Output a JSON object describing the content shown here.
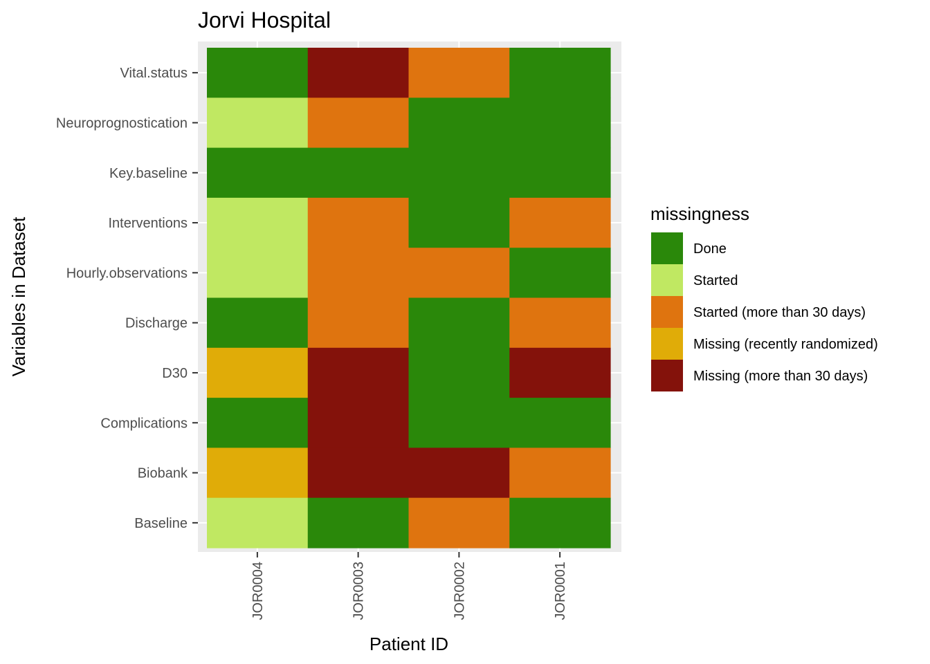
{
  "chart_data": {
    "type": "heatmap",
    "title": "Jorvi Hospital",
    "xlabel": "Patient ID",
    "ylabel": "Variables in Dataset",
    "x_categories": [
      "JOR0004",
      "JOR0003",
      "JOR0002",
      "JOR0001"
    ],
    "y_categories": [
      "Vital.status",
      "Neuroprognostication",
      "Key.baseline",
      "Interventions",
      "Hourly.observations",
      "Discharge",
      "D30",
      "Complications",
      "Biobank",
      "Baseline"
    ],
    "values": [
      [
        "Done",
        "Missing (more than 30 days)",
        "Started (more than 30 days)",
        "Done"
      ],
      [
        "Started",
        "Started (more than 30 days)",
        "Done",
        "Done"
      ],
      [
        "Done",
        "Done",
        "Done",
        "Done"
      ],
      [
        "Started",
        "Started (more than 30 days)",
        "Done",
        "Started (more than 30 days)"
      ],
      [
        "Started",
        "Started (more than 30 days)",
        "Started (more than 30 days)",
        "Done"
      ],
      [
        "Done",
        "Started (more than 30 days)",
        "Done",
        "Started (more than 30 days)"
      ],
      [
        "Missing (recently randomized)",
        "Missing (more than 30 days)",
        "Done",
        "Missing (more than 30 days)"
      ],
      [
        "Done",
        "Missing (more than 30 days)",
        "Done",
        "Done"
      ],
      [
        "Missing (recently randomized)",
        "Missing (more than 30 days)",
        "Missing (more than 30 days)",
        "Started (more than 30 days)"
      ],
      [
        "Started",
        "Done",
        "Started (more than 30 days)",
        "Done"
      ]
    ],
    "legend": {
      "title": "missingness",
      "position": "right",
      "entries": [
        {
          "label": "Done",
          "color": "#2a880a"
        },
        {
          "label": "Started",
          "color": "#c0e862"
        },
        {
          "label": "Started (more than 30 days)",
          "color": "#df740f"
        },
        {
          "label": "Missing (recently randomized)",
          "color": "#e0ac08"
        },
        {
          "label": "Missing (more than 30 days)",
          "color": "#84120b"
        }
      ]
    },
    "grid": true,
    "panel_background": "#ebebeb"
  }
}
